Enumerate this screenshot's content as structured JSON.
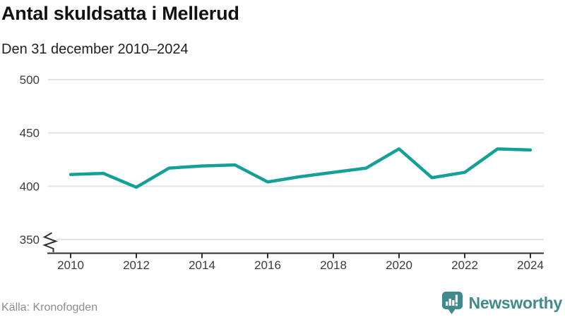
{
  "header": {
    "title": "Antal skuldsatta i Mellerud",
    "subtitle": "Den 31 december 2010–2024"
  },
  "footer": {
    "source": "Källa: Kronofogden",
    "brand": "Newsworthy"
  },
  "colors": {
    "line": "#14a098",
    "grid": "#e3e3e3",
    "axis": "#2f2f2f",
    "tick_text": "#3b3b3b",
    "muted_text": "#8c8c8c",
    "brand_teal": "#42898b"
  },
  "chart_data": {
    "type": "line",
    "title": "Antal skuldsatta i Mellerud",
    "subtitle": "Den 31 december 2010–2024",
    "x": [
      2010,
      2011,
      2012,
      2013,
      2014,
      2015,
      2016,
      2017,
      2018,
      2019,
      2020,
      2021,
      2022,
      2023,
      2024
    ],
    "series": [
      {
        "name": "Antal skuldsatta",
        "values": [
          411,
          412,
          399,
          417,
          419,
          420,
          404,
          409,
          413,
          417,
          435,
          408,
          413,
          435,
          434
        ]
      }
    ],
    "xlabel": "",
    "ylabel": "",
    "ylim": [
      350,
      500
    ],
    "y_ticks": [
      350,
      400,
      450,
      500
    ],
    "x_ticks": [
      2010,
      2012,
      2014,
      2016,
      2018,
      2020,
      2022,
      2024
    ],
    "axis_break": true,
    "grid": "horizontal",
    "legend": "none"
  }
}
